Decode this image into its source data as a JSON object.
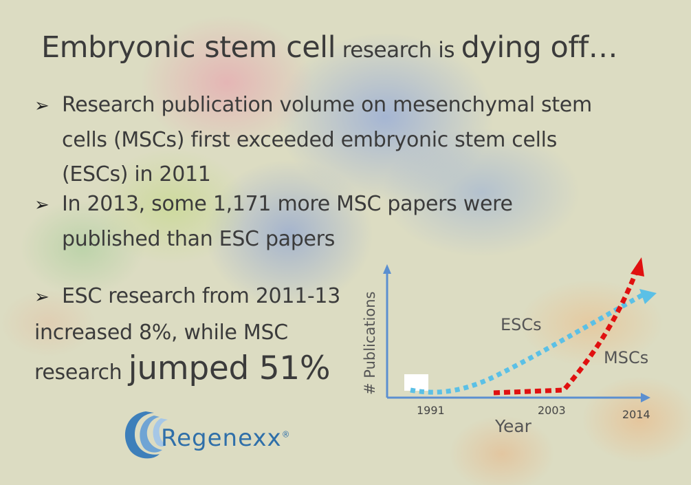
{
  "slide": {
    "title_part1": "Embryonic stem cell",
    "title_part2": "research is",
    "title_part3": "dying off…",
    "bullet1_line1": "Research publication volume on mesenchymal stem",
    "bullet1_line2": "cells (MSCs) first exceeded embryonic stem cells",
    "bullet1_line3": "(ESCs) in 2011",
    "bullet2_line1": "In 2013, some 1,171 more MSC papers were",
    "bullet2_line2": "published than ESC papers",
    "bullet3_line1": "ESC research from 2011-13",
    "bullet3_line2": "increased 8%, while MSC",
    "bullet3_line3": "research",
    "bullet3_emphasis": "jumped 51%",
    "bullet_icon": "arrow-bullet-icon"
  },
  "logo": {
    "text": "Regenexx",
    "registered": "®",
    "icon": "regenexx-swirl-logo",
    "color": "#2f6fa9"
  },
  "chart_data": {
    "type": "line",
    "xlabel": "Year",
    "ylabel": "# Publications",
    "tick_labels": [
      "1991",
      "2003",
      "2014"
    ],
    "series": [
      {
        "name": "ESCs",
        "color": "#5bc0e6",
        "style": "dotted-arrow",
        "trend": "rising gradually from 1991 to 2014"
      },
      {
        "name": "MSCs",
        "color": "#e01010",
        "style": "dotted-arrow",
        "trend": "flat after 1991, rising steeply after 2003"
      }
    ],
    "axis_color": "#5b8fd0",
    "grid": false
  }
}
